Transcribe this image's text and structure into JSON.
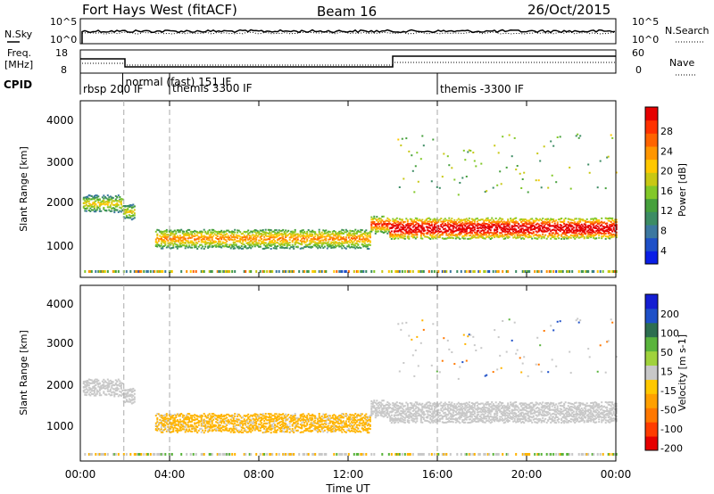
{
  "header": {
    "title": "Fort Hays West (fitACF)",
    "beam": "Beam 16",
    "date": "26/Oct/2015"
  },
  "top_panel": {
    "left_label": "N.Sky",
    "right_label": "N.Search",
    "left_ticks": [
      "10^5",
      "10^0"
    ],
    "right_ticks": [
      "10^5",
      "10^0"
    ]
  },
  "freq_panel": {
    "left_label_1": "Freq.",
    "left_label_2": "[MHz]",
    "right_label": "Nave",
    "left_ticks": [
      "18",
      "8"
    ],
    "right_ticks": [
      "60",
      "0"
    ]
  },
  "cpid_panel": {
    "label": "CPID",
    "segments": [
      {
        "start_hour": 0.0,
        "label": "rbsp  200  IF"
      },
      {
        "start_hour": 1.9,
        "label": "normal  (fast)  151  IF"
      },
      {
        "start_hour": 4.0,
        "label": "themis  3300  IF"
      },
      {
        "start_hour": 16.0,
        "label": "themis  -3300  IF"
      }
    ]
  },
  "x_axis": {
    "label": "Time UT",
    "ticks": [
      "00:00",
      "04:00",
      "08:00",
      "12:00",
      "16:00",
      "20:00",
      "00:00"
    ],
    "range_hours": [
      0,
      24
    ]
  },
  "power_panel": {
    "ylabel": "Slant Range [km]",
    "yticks": [
      "1000",
      "2000",
      "3000",
      "4000"
    ],
    "colorbar": {
      "label": "Power [dB]",
      "ticks": [
        "4",
        "8",
        "12",
        "16",
        "20",
        "24",
        "28"
      ],
      "colors": [
        "#0a1ee6",
        "#1e50c8",
        "#3c78a0",
        "#3c8c64",
        "#46a03c",
        "#82c828",
        "#c8c814",
        "#ffc800",
        "#ff9600",
        "#ff6400",
        "#ff3200",
        "#e60000"
      ]
    }
  },
  "velocity_panel": {
    "ylabel": "Slant Range [km]",
    "yticks": [
      "1000",
      "2000",
      "3000",
      "4000"
    ],
    "colorbar": {
      "label": "Velocity [m s-1]",
      "ticks": [
        "200",
        "100",
        "50",
        "15",
        "-15",
        "-50",
        "-100",
        "-200"
      ],
      "colors": [
        "#141ed2",
        "#1e50c8",
        "#2d6e50",
        "#5ab43c",
        "#a0d23c",
        "#c8c8c8",
        "#ffc800",
        "#ffa000",
        "#ff7800",
        "#ff3c00",
        "#e60000"
      ]
    }
  },
  "chart_data": {
    "type": "heatmap",
    "x_range_hours": [
      0,
      24
    ],
    "y_range_km": [
      180,
      4500
    ],
    "scatter_bands": [
      {
        "t0": 0.1,
        "t1": 1.9,
        "r_center": 2000,
        "r_halfwidth": 180,
        "power": 14,
        "velocity": 0
      },
      {
        "t0": 1.9,
        "t1": 2.4,
        "r_center": 1800,
        "r_halfwidth": 160,
        "power": 14,
        "velocity": 0
      },
      {
        "t0": 3.3,
        "t1": 13.0,
        "r_center": 1150,
        "r_halfwidth": 220,
        "power": 17,
        "velocity": -20
      },
      {
        "t0": 13.0,
        "t1": 13.8,
        "r_center": 1500,
        "r_halfwidth": 200,
        "power": 20,
        "velocity": 0
      },
      {
        "t0": 13.8,
        "t1": 24.0,
        "r_center": 1400,
        "r_halfwidth": 230,
        "power": 26,
        "velocity": 0
      }
    ]
  }
}
